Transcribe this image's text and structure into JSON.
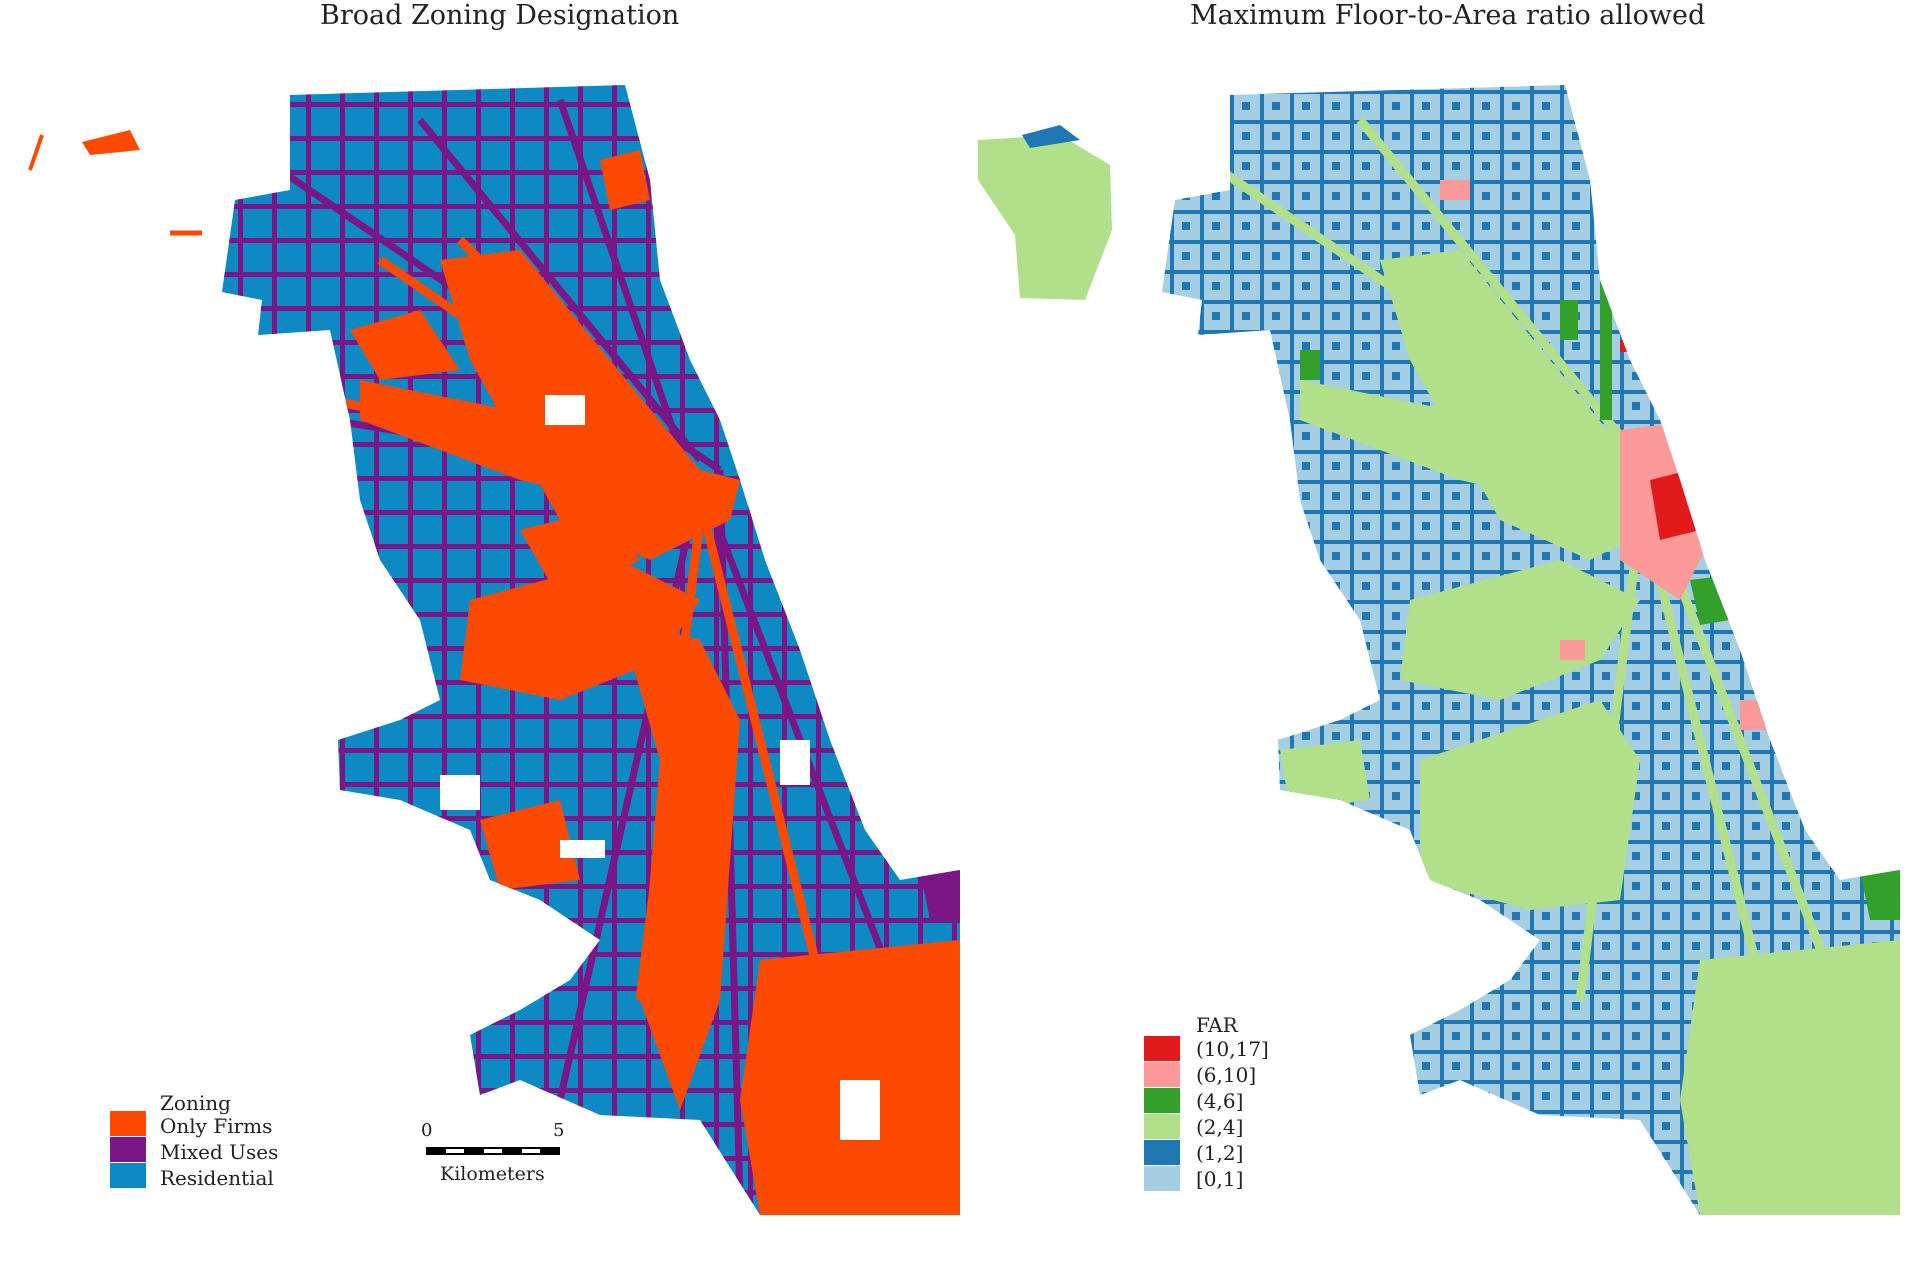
{
  "left_map": {
    "title": "Broad Zoning Designation",
    "legend": {
      "title": "Zoning",
      "items": [
        {
          "label": "Only Firms",
          "color": "#fc4a02"
        },
        {
          "label": "Mixed Uses",
          "color": "#7b1686"
        },
        {
          "label": "Residential",
          "color": "#0d8ac3"
        }
      ]
    },
    "scale_bar": {
      "start_label": "0",
      "end_label": "5",
      "unit_label": "Kilometers"
    }
  },
  "right_map": {
    "title": "Maximum Floor-to-Area ratio allowed",
    "legend": {
      "title": "FAR",
      "items": [
        {
          "label": "(10,17]",
          "color": "#e31a1c"
        },
        {
          "label": "(6,10]",
          "color": "#fb9a99"
        },
        {
          "label": "(4,6]",
          "color": "#33a02c"
        },
        {
          "label": "(2,4]",
          "color": "#b2df8a"
        },
        {
          "label": "(1,2]",
          "color": "#1f78b4"
        },
        {
          "label": "[0,1]",
          "color": "#a6cee3"
        }
      ]
    }
  }
}
